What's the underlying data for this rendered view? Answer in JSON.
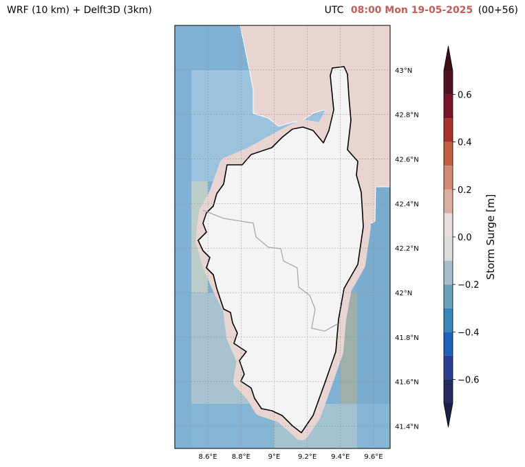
{
  "header": {
    "model": "WRF (10 km) + Delft3D (3km)",
    "utc_label": "UTC",
    "datetime": "08:00 Mon 19-05-2025",
    "lead": "(00+56)",
    "datetime_color": "#c85a5a"
  },
  "map": {
    "lon_range": [
      8.4,
      9.7
    ],
    "lat_range": [
      41.3,
      43.2
    ],
    "lon_ticks": [
      {
        "value": 8.6,
        "label": "8.6°E"
      },
      {
        "value": 8.8,
        "label": "8.8°E"
      },
      {
        "value": 9.0,
        "label": "9°E"
      },
      {
        "value": 9.2,
        "label": "9.2°E"
      },
      {
        "value": 9.4,
        "label": "9.4°E"
      },
      {
        "value": 9.6,
        "label": "9.6°E"
      }
    ],
    "lat_ticks": [
      {
        "value": 41.4,
        "label": "41.4°N"
      },
      {
        "value": 41.6,
        "label": "41.6°N"
      },
      {
        "value": 41.8,
        "label": "41.8°N"
      },
      {
        "value": 42.0,
        "label": "42°N"
      },
      {
        "value": 42.2,
        "label": "42.2°N"
      },
      {
        "value": 42.4,
        "label": "42.4°N"
      },
      {
        "value": 42.6,
        "label": "42.6°N"
      },
      {
        "value": 42.8,
        "label": "42.8°N"
      },
      {
        "value": 43.0,
        "label": "43°N"
      }
    ],
    "gridlines": true,
    "land_color": "#f4f4f4",
    "coast_surge_color": "#e8d5d2"
  },
  "chart_data": {
    "type": "heatmap",
    "variable": "Storm Surge",
    "unit": "m",
    "colorbar": {
      "label": "Storm Surge [m]",
      "extend": "both",
      "levels": [
        -0.7,
        -0.6,
        -0.5,
        -0.4,
        -0.3,
        -0.2,
        -0.1,
        0.0,
        0.1,
        0.2,
        0.3,
        0.4,
        0.5,
        0.6,
        0.7
      ],
      "colors": [
        "#232c5e",
        "#2b3e96",
        "#1d62ba",
        "#3586ba",
        "#6aa2bc",
        "#a8bdc9",
        "#dcdcdc",
        "#e9dcd9",
        "#ddafa2",
        "#d38a74",
        "#c0603f",
        "#a83230",
        "#7a1328",
        "#521220"
      ],
      "under_color": "#1a1f44",
      "over_color": "#3d0d18",
      "ticks": [
        {
          "value": -0.6,
          "label": "−0.6"
        },
        {
          "value": -0.4,
          "label": "−0.4"
        },
        {
          "value": -0.2,
          "label": "−0.2"
        },
        {
          "value": 0.0,
          "label": "0.0"
        },
        {
          "value": 0.2,
          "label": "0.2"
        },
        {
          "value": 0.4,
          "label": "0.4"
        },
        {
          "value": 0.6,
          "label": "0.6"
        }
      ]
    },
    "grid_cells": [
      {
        "lon": [
          8.4,
          8.5
        ],
        "lat": [
          41.3,
          43.2
        ],
        "surge": -0.3,
        "color": "#7fb1d5"
      },
      {
        "lon": [
          8.5,
          9.7
        ],
        "lat": [
          43.0,
          43.2
        ],
        "surge": -0.3,
        "color": "#7fb1d5"
      },
      {
        "lon": [
          8.5,
          9.0
        ],
        "lat": [
          42.5,
          43.0
        ],
        "surge": -0.25,
        "color": "#9cc3dd"
      },
      {
        "lon": [
          9.0,
          9.6
        ],
        "lat": [
          42.5,
          43.0
        ],
        "surge": -0.25,
        "color": "#9cc3dd"
      },
      {
        "lon": [
          8.5,
          8.6
        ],
        "lat": [
          42.0,
          42.5
        ],
        "surge": -0.1,
        "color": "#bccdc8"
      },
      {
        "lon": [
          8.5,
          9.0
        ],
        "lat": [
          41.5,
          42.0
        ],
        "surge": -0.2,
        "color": "#a8c3cf"
      },
      {
        "lon": [
          8.5,
          9.7
        ],
        "lat": [
          41.3,
          41.5
        ],
        "surge": -0.3,
        "color": "#84b5d4"
      },
      {
        "lon": [
          9.0,
          9.5
        ],
        "lat": [
          41.3,
          41.5
        ],
        "surge": -0.2,
        "color": "#a4c3d0"
      },
      {
        "lon": [
          9.5,
          9.7
        ],
        "lat": [
          41.5,
          42.5
        ],
        "surge": -0.3,
        "color": "#7aacd0"
      },
      {
        "lon": [
          9.4,
          9.5
        ],
        "lat": [
          41.5,
          42.0
        ],
        "surge": -0.15,
        "color": "#9eb0a9"
      }
    ]
  }
}
